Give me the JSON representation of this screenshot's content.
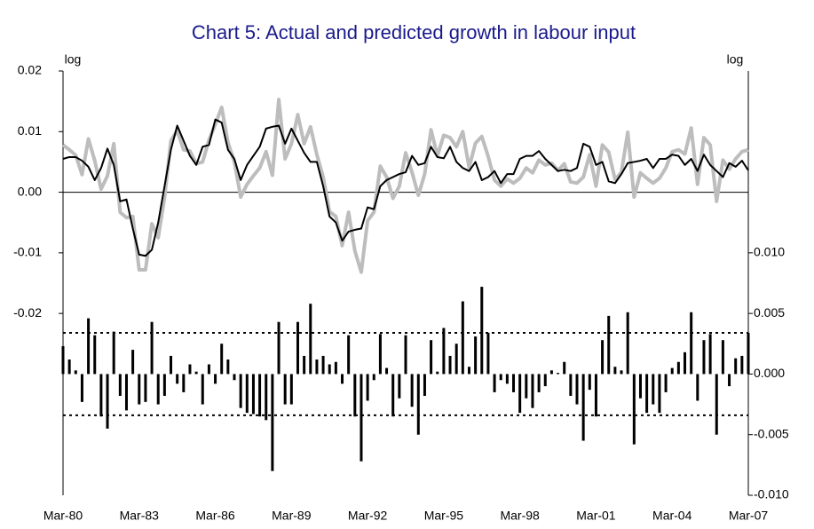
{
  "chart_data": {
    "type": "line",
    "title": "Chart 5: Actual and predicted growth in labour input",
    "ylabel": "log",
    "y2label": "log",
    "ylim": [
      -0.05,
      0.02
    ],
    "yticks": [
      0.02,
      0.01,
      {
        "value": 0,
        "label": "0.00"
      },
      -0.01,
      -0.02
    ],
    "y2lim": [
      -0.01,
      0.025
    ],
    "y2ticks": [
      {
        "value": 0.01,
        "label": "0.010"
      },
      0.005,
      {
        "value": 0,
        "label": "0.000"
      },
      -0.005,
      {
        "value": -0.01,
        "label": "-0.010"
      }
    ],
    "y2_reference_lines": [
      0.0034,
      -0.0034
    ],
    "reference_line_style": "dotted",
    "categories": [
      "Mar-80",
      null,
      null,
      null,
      null,
      null,
      null,
      null,
      null,
      null,
      null,
      null,
      "Mar-83",
      null,
      null,
      null,
      null,
      null,
      null,
      null,
      null,
      null,
      null,
      null,
      "Mar-86",
      null,
      null,
      null,
      null,
      null,
      null,
      null,
      null,
      null,
      null,
      null,
      "Mar-89",
      null,
      null,
      null,
      null,
      null,
      null,
      null,
      null,
      null,
      null,
      null,
      "Mar-92",
      null,
      null,
      null,
      null,
      null,
      null,
      null,
      null,
      null,
      null,
      null,
      "Mar-95",
      null,
      null,
      null,
      null,
      null,
      null,
      null,
      null,
      null,
      null,
      null,
      "Mar-98",
      null,
      null,
      null,
      null,
      null,
      null,
      null,
      null,
      null,
      null,
      null,
      "Mar-01",
      null,
      null,
      null,
      null,
      null,
      null,
      null,
      null,
      null,
      null,
      null,
      "Mar-04",
      null,
      null,
      null,
      null,
      null,
      null,
      null,
      null,
      null,
      null,
      null,
      "Mar-07"
    ],
    "series": [
      {
        "type": "line",
        "color": "#bdbdbd",
        "line_width": 4,
        "values": [
          0.0078,
          0.007,
          0.0061,
          0.0029,
          0.0088,
          0.0052,
          0.0005,
          0.0027,
          0.008,
          -0.0033,
          -0.0042,
          -0.004,
          -0.0128,
          -0.0128,
          -0.0052,
          -0.0075,
          -0.0008,
          0.0085,
          0.0102,
          0.007,
          0.0068,
          0.0047,
          0.005,
          0.0086,
          0.0112,
          0.014,
          0.0082,
          0.005,
          -0.0008,
          0.0013,
          0.0027,
          0.004,
          0.0067,
          0.0028,
          0.0153,
          0.0055,
          0.008,
          0.0128,
          0.008,
          0.0108,
          0.0062,
          0.0025,
          -0.0032,
          -0.004,
          -0.0088,
          -0.0033,
          -0.0097,
          -0.0132,
          -0.0047,
          -0.0033,
          0.0043,
          0.0025,
          -0.001,
          0.001,
          0.0065,
          0.0033,
          -0.0005,
          0.003,
          0.0103,
          0.006,
          0.0094,
          0.009,
          0.0075,
          0.01,
          0.0041,
          0.0081,
          0.0092,
          0.0059,
          0.002,
          0.001,
          0.0022,
          0.0015,
          0.0023,
          0.004,
          0.0032,
          0.0053,
          0.0045,
          0.0048,
          0.0036,
          0.0047,
          0.0017,
          0.0015,
          0.0025,
          0.0062,
          0.001,
          0.0078,
          0.0066,
          0.0021,
          0.0033,
          0.0099,
          -0.0008,
          0.0032,
          0.0023,
          0.0015,
          0.0023,
          0.004,
          0.0067,
          0.007,
          0.0063,
          0.0106,
          0.0013,
          0.009,
          0.0078,
          -0.0015,
          0.0053,
          0.0038,
          0.0055,
          0.0067,
          0.007
        ]
      },
      {
        "type": "line",
        "color": "#000000",
        "line_width": 2,
        "values": [
          0.0055,
          0.0058,
          0.0058,
          0.0052,
          0.0042,
          0.002,
          0.004,
          0.0072,
          0.0045,
          -0.0015,
          -0.0012,
          -0.006,
          -0.0103,
          -0.0105,
          -0.0095,
          -0.005,
          0.001,
          0.007,
          0.011,
          0.0085,
          0.006,
          0.0045,
          0.0075,
          0.0078,
          0.012,
          0.0115,
          0.007,
          0.0055,
          0.002,
          0.0045,
          0.006,
          0.0075,
          0.0105,
          0.0108,
          0.011,
          0.008,
          0.0105,
          0.0085,
          0.0065,
          0.005,
          0.005,
          0.001,
          -0.004,
          -0.005,
          -0.008,
          -0.0065,
          -0.0062,
          -0.006,
          -0.0025,
          -0.0028,
          0.001,
          0.002,
          0.0025,
          0.003,
          0.0033,
          0.006,
          0.0045,
          0.0048,
          0.0075,
          0.0058,
          0.0056,
          0.0075,
          0.005,
          0.004,
          0.0035,
          0.005,
          0.002,
          0.0025,
          0.0035,
          0.0015,
          0.003,
          0.003,
          0.0055,
          0.006,
          0.006,
          0.0068,
          0.0055,
          0.0045,
          0.0035,
          0.0037,
          0.0035,
          0.004,
          0.008,
          0.0075,
          0.0045,
          0.005,
          0.0018,
          0.0015,
          0.003,
          0.0048,
          0.005,
          0.0052,
          0.0055,
          0.004,
          0.0055,
          0.0055,
          0.0062,
          0.006,
          0.0045,
          0.0055,
          0.0035,
          0.0062,
          0.0045,
          0.0035,
          0.0025,
          0.0048,
          0.0042,
          0.0052,
          0.0036
        ]
      },
      {
        "type": "bar",
        "axis": "y2",
        "color": "#000000",
        "values": [
          0.0023,
          0.0012,
          0.0003,
          -0.0023,
          0.0046,
          0.0032,
          -0.0035,
          -0.0045,
          0.0035,
          -0.0018,
          -0.003,
          0.002,
          -0.0025,
          -0.0023,
          0.0043,
          -0.0025,
          -0.0018,
          0.0015,
          -0.0008,
          -0.0015,
          0.0008,
          0.0002,
          -0.0025,
          0.0008,
          -0.0008,
          0.0025,
          0.0012,
          -0.0005,
          -0.0028,
          -0.0032,
          -0.0033,
          -0.0035,
          -0.0038,
          -0.008,
          0.0043,
          -0.0025,
          -0.0025,
          0.0043,
          0.0015,
          0.0058,
          0.0012,
          0.0015,
          0.0008,
          0.001,
          -0.0008,
          0.0032,
          -0.0035,
          -0.0072,
          -0.0022,
          -0.0005,
          0.0033,
          0.0005,
          -0.0035,
          -0.002,
          0.0032,
          -0.0027,
          -0.005,
          -0.0018,
          0.0028,
          0.0002,
          0.0038,
          0.0015,
          0.0025,
          0.006,
          0.0006,
          0.0031,
          0.0072,
          0.0034,
          -0.0015,
          -0.0005,
          -0.0008,
          -0.0015,
          -0.0032,
          -0.002,
          -0.0028,
          -0.0015,
          -0.001,
          0.0003,
          0.0001,
          0.001,
          -0.0018,
          -0.0025,
          -0.0055,
          -0.0013,
          -0.0035,
          0.0028,
          0.0048,
          0.0006,
          0.0003,
          0.0051,
          -0.0058,
          -0.002,
          -0.0032,
          -0.0025,
          -0.0032,
          -0.0015,
          0.0005,
          0.001,
          0.0018,
          0.0051,
          -0.0022,
          0.0028,
          0.0033,
          -0.005,
          0.0028,
          -0.001,
          0.0013,
          0.0015,
          0.0034
        ]
      }
    ]
  }
}
